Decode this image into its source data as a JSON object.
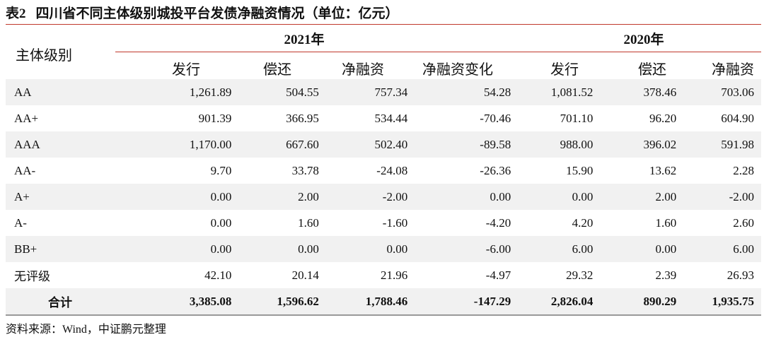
{
  "title": {
    "number": "表2",
    "text": "四川省不同主体级别城投平台发债净融资情况（单位：亿元）"
  },
  "header": {
    "grade": "主体级别",
    "year2021": "2021年",
    "year2020": "2020年",
    "columns": [
      "发行",
      "偿还",
      "净融资",
      "净融资变化",
      "发行",
      "偿还",
      "净融资"
    ]
  },
  "rows": [
    {
      "grade": "AA",
      "values": [
        "1,261.89",
        "504.55",
        "757.34",
        "54.28",
        "1,081.52",
        "378.46",
        "703.06"
      ]
    },
    {
      "grade": "AA+",
      "values": [
        "901.39",
        "366.95",
        "534.44",
        "-70.46",
        "701.10",
        "96.20",
        "604.90"
      ]
    },
    {
      "grade": "AAA",
      "values": [
        "1,170.00",
        "667.60",
        "502.40",
        "-89.58",
        "988.00",
        "396.02",
        "591.98"
      ]
    },
    {
      "grade": "AA-",
      "values": [
        "9.70",
        "33.78",
        "-24.08",
        "-26.36",
        "15.90",
        "13.62",
        "2.28"
      ]
    },
    {
      "grade": "A+",
      "values": [
        "0.00",
        "2.00",
        "-2.00",
        "0.00",
        "0.00",
        "2.00",
        "-2.00"
      ]
    },
    {
      "grade": "A-",
      "values": [
        "0.00",
        "1.60",
        "-1.60",
        "-4.20",
        "4.20",
        "1.60",
        "2.60"
      ]
    },
    {
      "grade": "BB+",
      "values": [
        "0.00",
        "0.00",
        "0.00",
        "-6.00",
        "6.00",
        "0.00",
        "6.00"
      ]
    },
    {
      "grade": "无评级",
      "values": [
        "42.10",
        "20.14",
        "21.96",
        "-4.97",
        "29.32",
        "2.39",
        "26.93"
      ]
    }
  ],
  "total": {
    "grade": "合计",
    "values": [
      "3,385.08",
      "1,596.62",
      "1,788.46",
      "-147.29",
      "2,826.04",
      "890.29",
      "1,935.75"
    ]
  },
  "source": "资料来源：Wind，中证鹏元整理",
  "colors": {
    "rule": "#c0392b",
    "stripe": "#f1f1f1"
  }
}
